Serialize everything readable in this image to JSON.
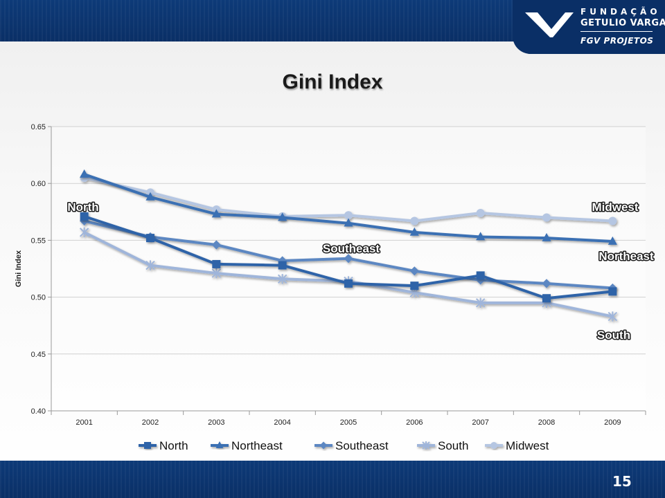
{
  "branding": {
    "line1": "FUNDAÇÃO",
    "line2": "GETULIO VARGAS",
    "line3": "FGV PROJETOS"
  },
  "page_number": "15",
  "colors": {
    "header": "#0a2f66",
    "North": "#2f63a8",
    "Northeast": "#3a6fb3",
    "Southeast": "#5c87c2",
    "South": "#9fb5da",
    "Midwest": "#b5c6e2"
  },
  "chart_data": {
    "type": "line",
    "title": "Gini Index",
    "xlabel": "",
    "ylabel": "Gini Index",
    "ylim": [
      0.4,
      0.65
    ],
    "yticks": [
      "0.65",
      "0.60",
      "0.55",
      "0.50",
      "0.45",
      "0.40"
    ],
    "grid": true,
    "legend_position": "bottom",
    "categories": [
      "2001",
      "2002",
      "2003",
      "2004",
      "2005",
      "2006",
      "2007",
      "2008",
      "2009"
    ],
    "series": [
      {
        "name": "North",
        "marker": "square",
        "values": [
          0.571,
          0.552,
          0.529,
          0.528,
          0.512,
          0.51,
          0.519,
          0.499,
          0.505
        ]
      },
      {
        "name": "Northeast",
        "marker": "triangle",
        "values": [
          0.608,
          0.588,
          0.573,
          0.57,
          0.565,
          0.557,
          0.553,
          0.552,
          0.549
        ]
      },
      {
        "name": "Southeast",
        "marker": "diamond",
        "values": [
          0.567,
          0.553,
          0.546,
          0.532,
          0.534,
          0.523,
          0.515,
          0.512,
          0.508
        ]
      },
      {
        "name": "South",
        "marker": "asterisk",
        "values": [
          0.557,
          0.528,
          0.521,
          0.516,
          0.514,
          0.504,
          0.495,
          0.495,
          0.483
        ]
      },
      {
        "name": "Midwest",
        "marker": "circle",
        "values": [
          0.605,
          0.592,
          0.577,
          0.571,
          0.572,
          0.567,
          0.574,
          0.57,
          0.567
        ]
      }
    ],
    "annotations": [
      "North",
      "Midwest",
      "Southeast",
      "Northeast",
      "South"
    ]
  }
}
